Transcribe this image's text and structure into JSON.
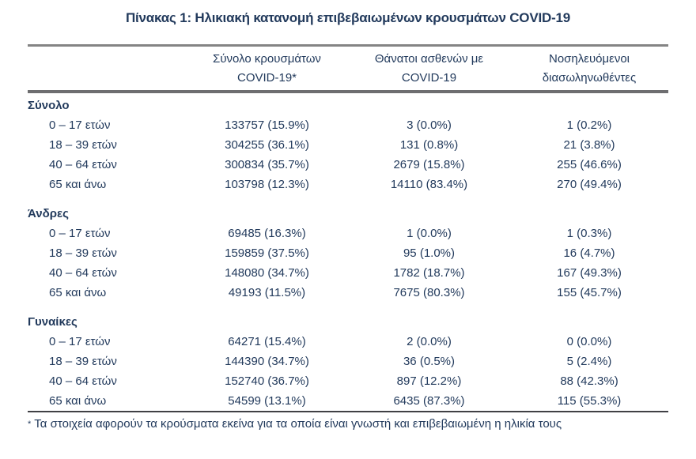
{
  "page": {
    "title": "Πίνακας 1: Ηλικιακή κατανομή επιβεβαιωμένων κρουσμάτων COVID-19"
  },
  "colors": {
    "text_navy": "#223a5c",
    "rule_gray": "#848484",
    "rule_dark": "#404044"
  },
  "table": {
    "header": {
      "cases_line1": "Σύνολο κρουσμάτων",
      "cases_line2": "COVID-19*",
      "deaths_line1": "Θάνατοι ασθενών με",
      "deaths_line2": "COVID-19",
      "intubated_line1": "Νοσηλευόμενοι",
      "intubated_line2": "διασωληνωθέντες"
    },
    "sections": [
      {
        "label": "Σύνολο",
        "rows": [
          {
            "age": "0 – 17 ετών",
            "cases": "133757 (15.9%)",
            "deaths": "3 (0.0%)",
            "intubated": "1 (0.2%)"
          },
          {
            "age": "18 – 39 ετών",
            "cases": "304255 (36.1%)",
            "deaths": "131 (0.8%)",
            "intubated": "21 (3.8%)"
          },
          {
            "age": "40 – 64 ετών",
            "cases": "300834 (35.7%)",
            "deaths": "2679 (15.8%)",
            "intubated": "255 (46.6%)"
          },
          {
            "age": "65 και άνω",
            "cases": "103798 (12.3%)",
            "deaths": "14110 (83.4%)",
            "intubated": "270 (49.4%)"
          }
        ]
      },
      {
        "label": "Άνδρες",
        "rows": [
          {
            "age": "0 – 17 ετών",
            "cases": "69485 (16.3%)",
            "deaths": "1 (0.0%)",
            "intubated": "1 (0.3%)"
          },
          {
            "age": "18 – 39 ετών",
            "cases": "159859 (37.5%)",
            "deaths": "95 (1.0%)",
            "intubated": "16 (4.7%)"
          },
          {
            "age": "40 – 64 ετών",
            "cases": "148080 (34.7%)",
            "deaths": "1782 (18.7%)",
            "intubated": "167 (49.3%)"
          },
          {
            "age": "65 και άνω",
            "cases": "49193 (11.5%)",
            "deaths": "7675 (80.3%)",
            "intubated": "155 (45.7%)"
          }
        ]
      },
      {
        "label": "Γυναίκες",
        "rows": [
          {
            "age": "0 – 17 ετών",
            "cases": "64271 (15.4%)",
            "deaths": "2 (0.0%)",
            "intubated": "0 (0.0%)"
          },
          {
            "age": "18 – 39 ετών",
            "cases": "144390 (34.7%)",
            "deaths": "36 (0.5%)",
            "intubated": "5 (2.4%)"
          },
          {
            "age": "40 – 64 ετών",
            "cases": "152740 (36.7%)",
            "deaths": "897 (12.2%)",
            "intubated": "88 (42.3%)"
          },
          {
            "age": "65 και άνω",
            "cases": "54599 (13.1%)",
            "deaths": "6435 (87.3%)",
            "intubated": "115 (55.3%)"
          }
        ]
      }
    ]
  },
  "footnote": {
    "marker": "*",
    "text": "Τα στοιχεία αφορούν τα κρούσματα εκείνα για τα οποία είναι γνωστή και επιβεβαιωμένη η ηλικία τους"
  }
}
